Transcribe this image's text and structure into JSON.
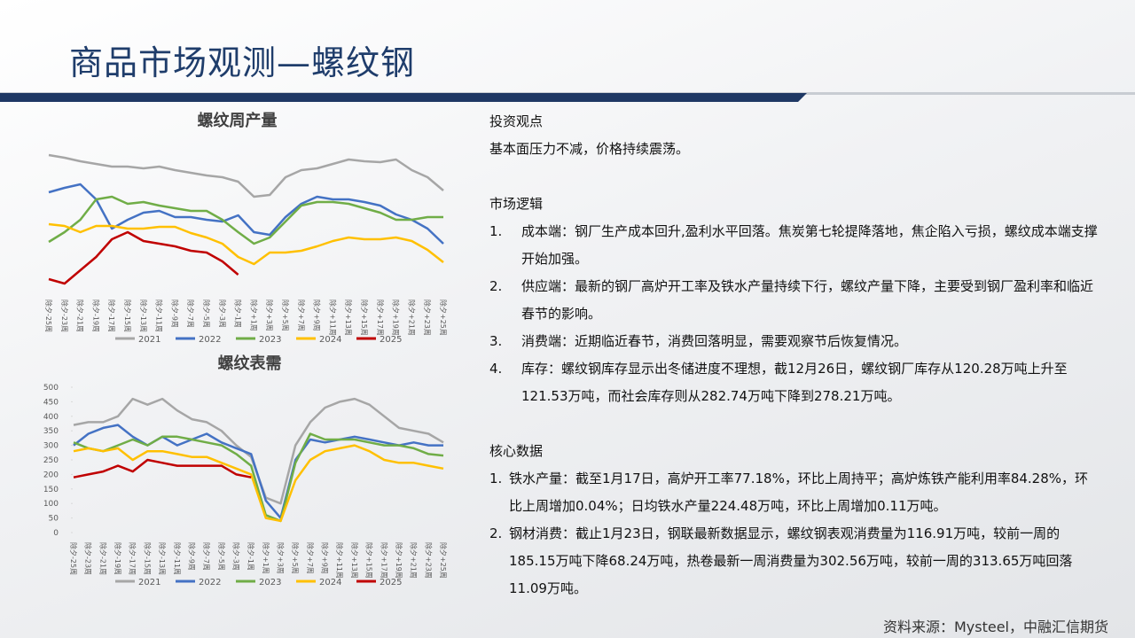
{
  "header": {
    "title": "商品市场观测—螺纹钢"
  },
  "chart_data": [
    {
      "type": "line",
      "title": "螺纹周产量",
      "categories": [
        "除夕-25周",
        "除夕-23周",
        "除夕-21周",
        "除夕-19周",
        "除夕-17周",
        "除夕-15周",
        "除夕-13周",
        "除夕-11周",
        "除夕-9周",
        "除夕-7周",
        "除夕-5周",
        "除夕-3周",
        "除夕-1周",
        "除夕+1周",
        "除夕+3周",
        "除夕+5周",
        "除夕+7周",
        "除夕+9周",
        "除夕+11周",
        "除夕+13周",
        "除夕+15周",
        "除夕+17周",
        "除夕+19周",
        "除夕+21周",
        "除夕+23周",
        "除夕+25周"
      ],
      "ylim": [
        160,
        320
      ],
      "series": [
        {
          "name": "2021",
          "color": "#a6a6a6",
          "values": [
            310,
            307,
            303,
            300,
            297,
            297,
            295,
            297,
            293,
            290,
            287,
            285,
            280,
            263,
            265,
            285,
            293,
            295,
            300,
            305,
            303,
            302,
            305,
            293,
            285,
            270
          ]
        },
        {
          "name": "2022",
          "color": "#4472c4",
          "values": [
            268,
            273,
            277,
            260,
            227,
            237,
            245,
            247,
            240,
            240,
            237,
            235,
            242,
            223,
            220,
            240,
            255,
            263,
            260,
            260,
            257,
            253,
            243,
            237,
            227,
            210
          ]
        },
        {
          "name": "2023",
          "color": "#70ad47",
          "values": [
            212,
            223,
            237,
            260,
            263,
            255,
            257,
            253,
            250,
            247,
            247,
            237,
            223,
            210,
            217,
            235,
            253,
            257,
            257,
            255,
            250,
            245,
            237,
            237,
            240,
            240
          ]
        },
        {
          "name": "2024",
          "color": "#ffc000",
          "values": [
            232,
            230,
            223,
            230,
            230,
            227,
            227,
            229,
            229,
            222,
            217,
            210,
            195,
            187,
            200,
            200,
            202,
            207,
            213,
            217,
            215,
            215,
            217,
            213,
            203,
            189
          ]
        },
        {
          "name": "2025",
          "color": "#c00000",
          "values": [
            170,
            165,
            180,
            195,
            215,
            223,
            213,
            210,
            207,
            202,
            200,
            190,
            175,
            null,
            null,
            null,
            null,
            null,
            null,
            null,
            null,
            null,
            null,
            null,
            null,
            null
          ]
        }
      ]
    },
    {
      "type": "line",
      "title": "螺纹表需",
      "categories": [
        "除夕-25周",
        "除夕-23周",
        "除夕-21周",
        "除夕-19周",
        "除夕-17周",
        "除夕-15周",
        "除夕-13周",
        "除夕-11周",
        "除夕-9周",
        "除夕-7周",
        "除夕-5周",
        "除夕-3周",
        "除夕-1周",
        "除夕+1周",
        "除夕+3周",
        "除夕+5周",
        "除夕+7周",
        "除夕+9周",
        "除夕+11周",
        "除夕+13周",
        "除夕+15周",
        "除夕+17周",
        "除夕+19周",
        "除夕+21周",
        "除夕+23周",
        "除夕+25周"
      ],
      "ylim": [
        0,
        500
      ],
      "yticks": [
        0,
        50,
        100,
        150,
        200,
        250,
        300,
        350,
        400,
        450,
        500
      ],
      "series": [
        {
          "name": "2021",
          "color": "#a6a6a6",
          "values": [
            370,
            380,
            380,
            400,
            460,
            440,
            460,
            420,
            390,
            380,
            350,
            300,
            260,
            120,
            100,
            300,
            380,
            430,
            450,
            460,
            440,
            400,
            360,
            350,
            340,
            310
          ]
        },
        {
          "name": "2022",
          "color": "#4472c4",
          "values": [
            300,
            340,
            360,
            370,
            330,
            300,
            330,
            300,
            320,
            340,
            310,
            290,
            270,
            110,
            50,
            250,
            320,
            310,
            320,
            330,
            320,
            310,
            300,
            310,
            300,
            300
          ]
        },
        {
          "name": "2023",
          "color": "#70ad47",
          "values": [
            310,
            290,
            280,
            300,
            320,
            300,
            330,
            330,
            320,
            310,
            300,
            270,
            230,
            60,
            40,
            240,
            340,
            320,
            320,
            320,
            310,
            300,
            300,
            290,
            270,
            265
          ]
        },
        {
          "name": "2024",
          "color": "#ffc000",
          "values": [
            280,
            290,
            280,
            290,
            250,
            280,
            280,
            270,
            260,
            260,
            240,
            220,
            200,
            50,
            40,
            180,
            250,
            280,
            290,
            300,
            280,
            250,
            240,
            240,
            230,
            220
          ]
        },
        {
          "name": "2025",
          "color": "#c00000",
          "values": [
            190,
            200,
            210,
            230,
            210,
            250,
            240,
            230,
            230,
            230,
            230,
            200,
            190,
            null,
            null,
            null,
            null,
            null,
            null,
            null,
            null,
            null,
            null,
            null,
            null,
            null
          ]
        }
      ]
    }
  ],
  "sections": [
    {
      "heading": "投资观点",
      "paragraphs": [
        "基本面压力不减，价格持续震荡。"
      ]
    },
    {
      "heading": "市场逻辑",
      "items": [
        {
          "number": "1.",
          "text": "成本端：钢厂生产成本回升,盈利水平回落。焦炭第七轮提降落地，焦企陷入亏损，螺纹成本端支撑开始加强。"
        },
        {
          "number": "2.",
          "text": "供应端：最新的钢厂高炉开工率及铁水产量持续下行，螺纹产量下降，主要受到钢厂盈利率和临近春节的影响。"
        },
        {
          "number": "3.",
          "text": "消费端：近期临近春节，消费回落明显，需要观察节后恢复情况。"
        },
        {
          "number": "4.",
          "text": "库存：螺纹钢库存显示出冬储进度不理想，截12月26日，螺纹钢厂库存从120.28万吨上升至121.53万吨，而社会库存则从282.74万吨下降到278.21万吨。"
        }
      ]
    },
    {
      "heading": "核心数据",
      "items": [
        {
          "number": "1.",
          "text": "铁水产量：截至1月17日，高炉开工率77.18%，环比上周持平；高炉炼铁产能利用率84.28%，环比上周增加0.04%；日均铁水产量224.48万吨，环比上周增加0.11万吨。"
        },
        {
          "number": "2.",
          "text": "钢材消费：截止1月23日，钢联最新数据显示，螺纹钢表观消费量为116.91万吨，较前一周的185.15万吨下降68.24万吨，热卷最新一周消费量为302.56万吨，较前一周的313.65万吨回落11.09万吨。"
        }
      ]
    }
  ],
  "source": "资料来源：Mysteel，中融汇信期货"
}
